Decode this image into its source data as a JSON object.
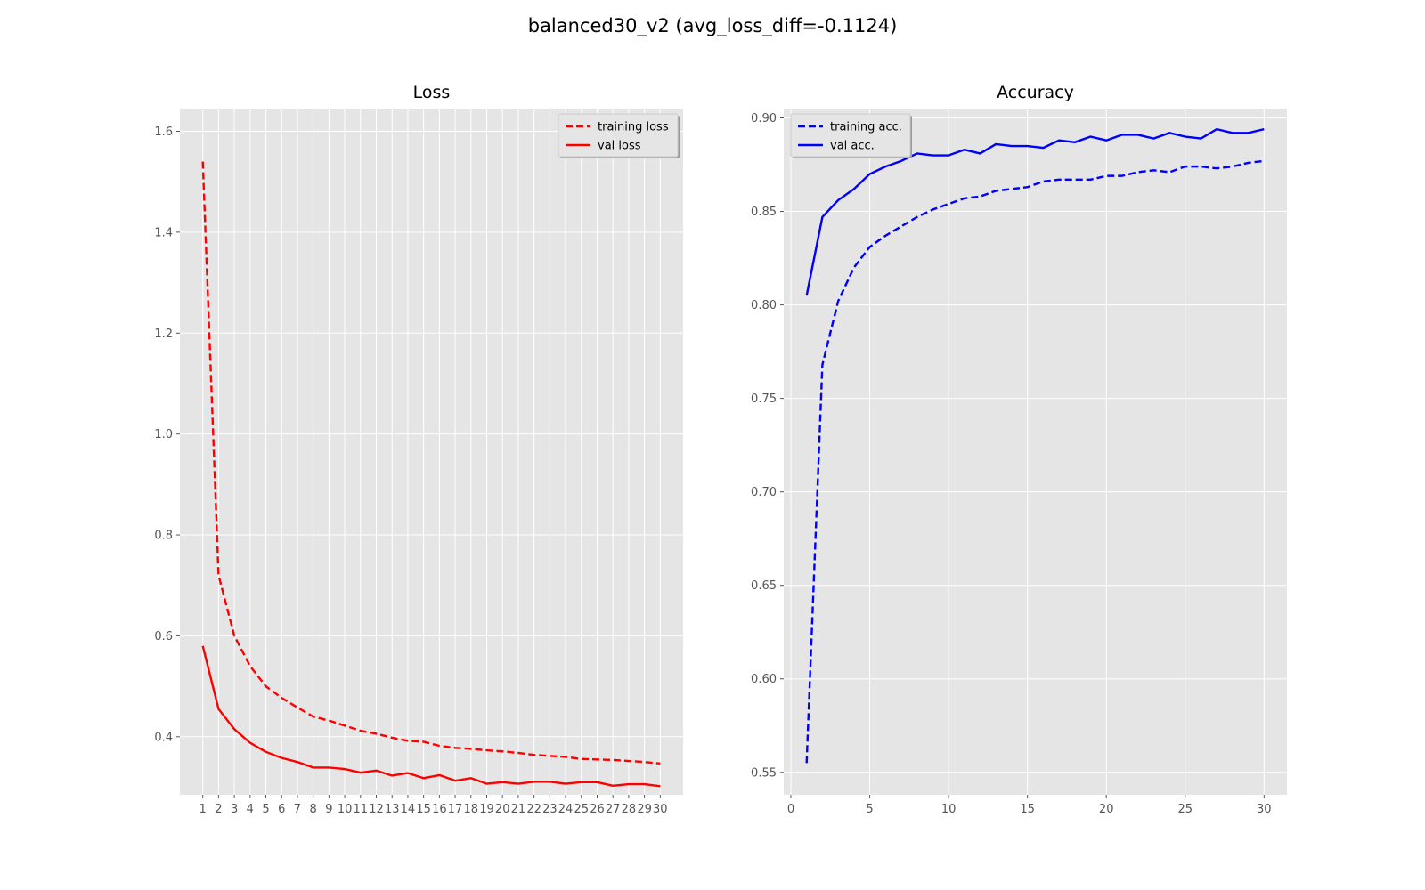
{
  "figure_title": "balanced30_v2 (avg_loss_diff=-0.1124)",
  "chart_data": [
    {
      "type": "line",
      "title": "Loss",
      "xlabel": "",
      "ylabel": "",
      "x": [
        1,
        2,
        3,
        4,
        5,
        6,
        7,
        8,
        9,
        10,
        11,
        12,
        13,
        14,
        15,
        16,
        17,
        18,
        19,
        20,
        21,
        22,
        23,
        24,
        25,
        26,
        27,
        28,
        29,
        30
      ],
      "xticks": [
        1,
        2,
        3,
        4,
        5,
        6,
        7,
        8,
        9,
        10,
        11,
        12,
        13,
        14,
        15,
        16,
        17,
        18,
        19,
        20,
        21,
        22,
        23,
        24,
        25,
        26,
        27,
        28,
        29,
        30
      ],
      "xlim": [
        -0.45,
        31.45
      ],
      "ylim": [
        0.285,
        1.645
      ],
      "yticks": [
        0.4,
        0.6,
        0.8,
        1.0,
        1.2,
        1.4,
        1.6
      ],
      "ytick_labels": [
        "0.4",
        "0.6",
        "0.8",
        "1.0",
        "1.2",
        "1.4",
        "1.6"
      ],
      "grid": true,
      "legend_position": "upper right",
      "series": [
        {
          "name": "training loss",
          "style": "dashed",
          "color": "#ff0000",
          "values": [
            1.54,
            0.72,
            0.6,
            0.54,
            0.5,
            0.477,
            0.458,
            0.44,
            0.432,
            0.422,
            0.412,
            0.406,
            0.398,
            0.392,
            0.39,
            0.382,
            0.378,
            0.376,
            0.373,
            0.371,
            0.368,
            0.364,
            0.362,
            0.36,
            0.356,
            0.355,
            0.354,
            0.352,
            0.35,
            0.347
          ]
        },
        {
          "name": "val loss",
          "style": "solid",
          "color": "#ff0000",
          "values": [
            0.58,
            0.455,
            0.415,
            0.388,
            0.37,
            0.358,
            0.35,
            0.339,
            0.339,
            0.336,
            0.329,
            0.333,
            0.323,
            0.328,
            0.318,
            0.324,
            0.313,
            0.318,
            0.307,
            0.31,
            0.307,
            0.311,
            0.311,
            0.307,
            0.31,
            0.31,
            0.303,
            0.306,
            0.306,
            0.302
          ]
        }
      ]
    },
    {
      "type": "line",
      "title": "Accuracy",
      "xlabel": "",
      "ylabel": "",
      "x": [
        1,
        2,
        3,
        4,
        5,
        6,
        7,
        8,
        9,
        10,
        11,
        12,
        13,
        14,
        15,
        16,
        17,
        18,
        19,
        20,
        21,
        22,
        23,
        24,
        25,
        26,
        27,
        28,
        29,
        30
      ],
      "xticks": [
        0,
        5,
        10,
        15,
        20,
        25,
        30
      ],
      "xlim": [
        -0.45,
        31.45
      ],
      "ylim": [
        0.538,
        0.905
      ],
      "yticks": [
        0.55,
        0.6,
        0.65,
        0.7,
        0.75,
        0.8,
        0.85,
        0.9
      ],
      "ytick_labels": [
        "0.55",
        "0.60",
        "0.65",
        "0.70",
        "0.75",
        "0.80",
        "0.85",
        "0.90"
      ],
      "grid": true,
      "legend_position": "upper left",
      "series": [
        {
          "name": "training acc.",
          "style": "dashed",
          "color": "#0000ff",
          "values": [
            0.555,
            0.768,
            0.802,
            0.82,
            0.831,
            0.837,
            0.842,
            0.847,
            0.851,
            0.854,
            0.857,
            0.858,
            0.861,
            0.862,
            0.863,
            0.866,
            0.867,
            0.867,
            0.867,
            0.869,
            0.869,
            0.871,
            0.872,
            0.871,
            0.874,
            0.874,
            0.873,
            0.874,
            0.876,
            0.877
          ]
        },
        {
          "name": "val acc.",
          "style": "solid",
          "color": "#0000ff",
          "values": [
            0.805,
            0.847,
            0.856,
            0.862,
            0.87,
            0.874,
            0.877,
            0.881,
            0.88,
            0.88,
            0.883,
            0.881,
            0.886,
            0.885,
            0.885,
            0.884,
            0.888,
            0.887,
            0.89,
            0.888,
            0.891,
            0.891,
            0.889,
            0.892,
            0.89,
            0.889,
            0.894,
            0.892,
            0.892,
            0.894
          ]
        }
      ]
    }
  ]
}
